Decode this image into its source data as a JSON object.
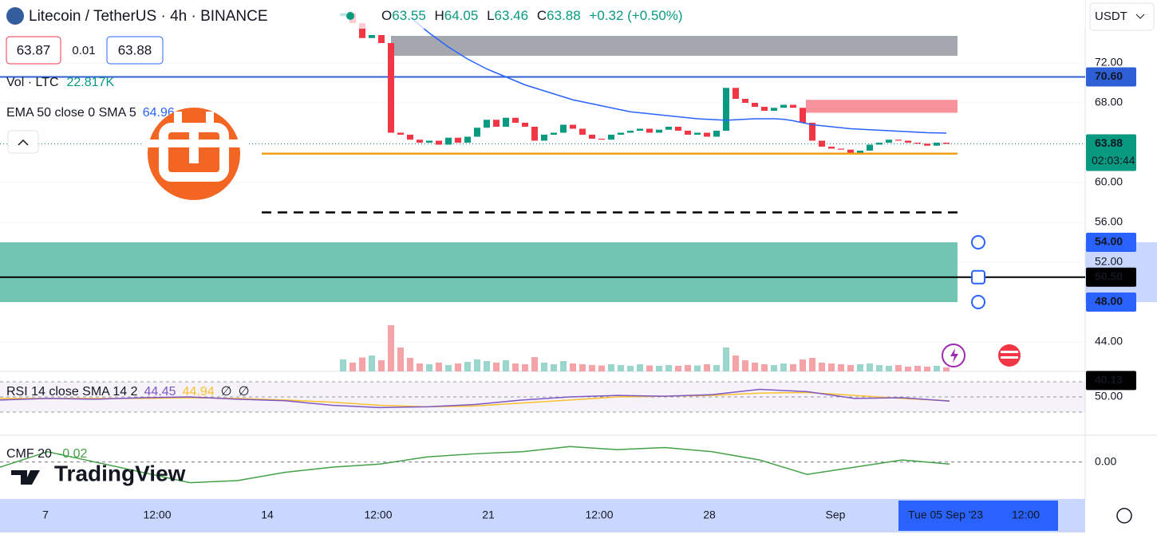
{
  "header": {
    "symbol": "Litecoin / TetherUS · 4h · BINANCE",
    "ohlc": [
      {
        "key": "O",
        "value": "63.55"
      },
      {
        "key": "H",
        "value": "64.05"
      },
      {
        "key": "L",
        "value": "63.46"
      },
      {
        "key": "C",
        "value": "63.88"
      }
    ],
    "change": "+0.32 (+0.50%)",
    "bid": "63.87",
    "spread": "0.01",
    "ask": "63.88",
    "currency": "USDT"
  },
  "legend": {
    "volume_label": "Vol · LTC",
    "volume_value": "22.817K",
    "ema_label": "EMA 50 close 0 SMA 5",
    "ema_value": "64.96",
    "rsi_label": "RSI 14 close SMA 14 2",
    "rsi_values": [
      "44.45",
      "44.94",
      "∅",
      "∅"
    ],
    "cmf_label": "CMF 20",
    "cmf_value": "-0.02"
  },
  "price_pane": {
    "ylim": [
      41.04,
      78.32
    ],
    "yticks": [
      {
        "value": 72,
        "label": "72.00"
      },
      {
        "value": 68,
        "label": "68.00"
      },
      {
        "value": 60,
        "label": "60.00"
      },
      {
        "value": 56,
        "label": "56.00"
      },
      {
        "value": 52,
        "label": "52.00"
      },
      {
        "value": 44,
        "label": "44.00"
      }
    ],
    "first_open": 76.7,
    "close": [
      77.0,
      76.0,
      74.5,
      74.8,
      74.0,
      65.0,
      64.8,
      64.3,
      64.0,
      64.2,
      63.8,
      64.5,
      64.0,
      64.6,
      65.5,
      66.3,
      65.6,
      66.5,
      66.0,
      65.6,
      64.2,
      64.8,
      65.0,
      65.8,
      65.4,
      64.8,
      64.4,
      64.3,
      64.8,
      65.0,
      65.2,
      65.4,
      65.0,
      65.3,
      65.6,
      65.2,
      64.8,
      65.0,
      64.6,
      65.2,
      69.5,
      68.4,
      68.0,
      67.6,
      67.2,
      67.5,
      67.8,
      67.5,
      66.0,
      64.2,
      63.6,
      63.4,
      63.3,
      63.0,
      63.2,
      63.8,
      64.0,
      64.3,
      64.2,
      64.0,
      63.9,
      63.7,
      64.0,
      63.88
    ],
    "ema": [
      null,
      null,
      null,
      null,
      null,
      null,
      null,
      76.6,
      75.8,
      75.0,
      74.3,
      73.6,
      73.0,
      72.4,
      71.9,
      71.4,
      71.0,
      70.6,
      70.2,
      69.8,
      69.5,
      69.2,
      68.9,
      68.6,
      68.3,
      68.1,
      67.9,
      67.7,
      67.5,
      67.3,
      67.1,
      67.0,
      66.9,
      66.8,
      66.7,
      66.6,
      66.5,
      66.4,
      66.35,
      66.3,
      66.25,
      66.3,
      66.35,
      66.4,
      66.4,
      66.4,
      66.35,
      66.2,
      66.0,
      65.8,
      65.7,
      65.6,
      65.5,
      65.4,
      65.35,
      65.3,
      65.25,
      65.2,
      65.15,
      65.1,
      65.05,
      65.0,
      64.98,
      64.96
    ],
    "levels": {
      "resistance_zone": [
        72.72,
        74.72
      ],
      "supply_zone": [
        67.0,
        68.3
      ],
      "support": 62.9,
      "dashed": 57.0,
      "range_zone": [
        48,
        54
      ],
      "range_mid": 50.5
    },
    "badges": [
      {
        "value": 70.6,
        "label": "70.60"
      },
      {
        "value": 63.88,
        "label": "63.88",
        "countdown": "02:03:44"
      },
      {
        "value": 54,
        "label": "54.00"
      },
      {
        "value": 50.5,
        "label": "50.50"
      },
      {
        "value": 48,
        "label": "48.00"
      },
      {
        "value": 40.13,
        "label": "40.13"
      }
    ]
  },
  "volume_pane": {
    "ylim": [
      0,
      240
    ],
    "values": [
      30,
      22,
      35,
      40,
      28,
      116,
      60,
      34,
      20,
      18,
      22,
      16,
      20,
      24,
      30,
      26,
      22,
      28,
      20,
      18,
      36,
      22,
      18,
      26,
      20,
      18,
      16,
      15,
      18,
      16,
      14,
      18,
      15,
      14,
      16,
      14,
      16,
      15,
      18,
      16,
      60,
      40,
      28,
      22,
      18,
      16,
      20,
      18,
      30,
      34,
      22,
      20,
      18,
      16,
      18,
      20,
      16,
      14,
      16,
      12,
      14,
      12,
      14,
      10
    ]
  },
  "rsi_pane": {
    "ylim": [
      -0.5,
      83.7
    ],
    "yticks": [
      {
        "value": 50,
        "label": "50.00"
      }
    ],
    "bands": [
      30,
      70
    ],
    "rsi": [
      46,
      48,
      47,
      49,
      50,
      47,
      45,
      39,
      36,
      37,
      40,
      46,
      50,
      52,
      51,
      53,
      60,
      57,
      48,
      49,
      44.45
    ],
    "sma": [
      48,
      48,
      48,
      48,
      49,
      48,
      46,
      43,
      39,
      37,
      38,
      42,
      46,
      50,
      51,
      52,
      55,
      56,
      52,
      48,
      44.94
    ]
  },
  "cmf_pane": {
    "ylim": [
      -0.35,
      0.26
    ],
    "yticks": [
      {
        "value": 0,
        "label": "0.00"
      }
    ],
    "values": [
      -0.05,
      0.1,
      0.0,
      -0.1,
      -0.2,
      -0.18,
      -0.1,
      -0.05,
      -0.02,
      0.05,
      0.08,
      0.1,
      0.15,
      0.12,
      0.14,
      0.1,
      0.02,
      -0.12,
      -0.05,
      0.02,
      -0.02
    ]
  },
  "time_axis": {
    "labels": [
      "7",
      "12:00",
      "14",
      "12:00",
      "21",
      "12:00",
      "28",
      "Sep"
    ],
    "crosshair_date": "Tue 05 Sep '23",
    "crosshair_time": "12:00"
  },
  "brand": "TradingView"
}
